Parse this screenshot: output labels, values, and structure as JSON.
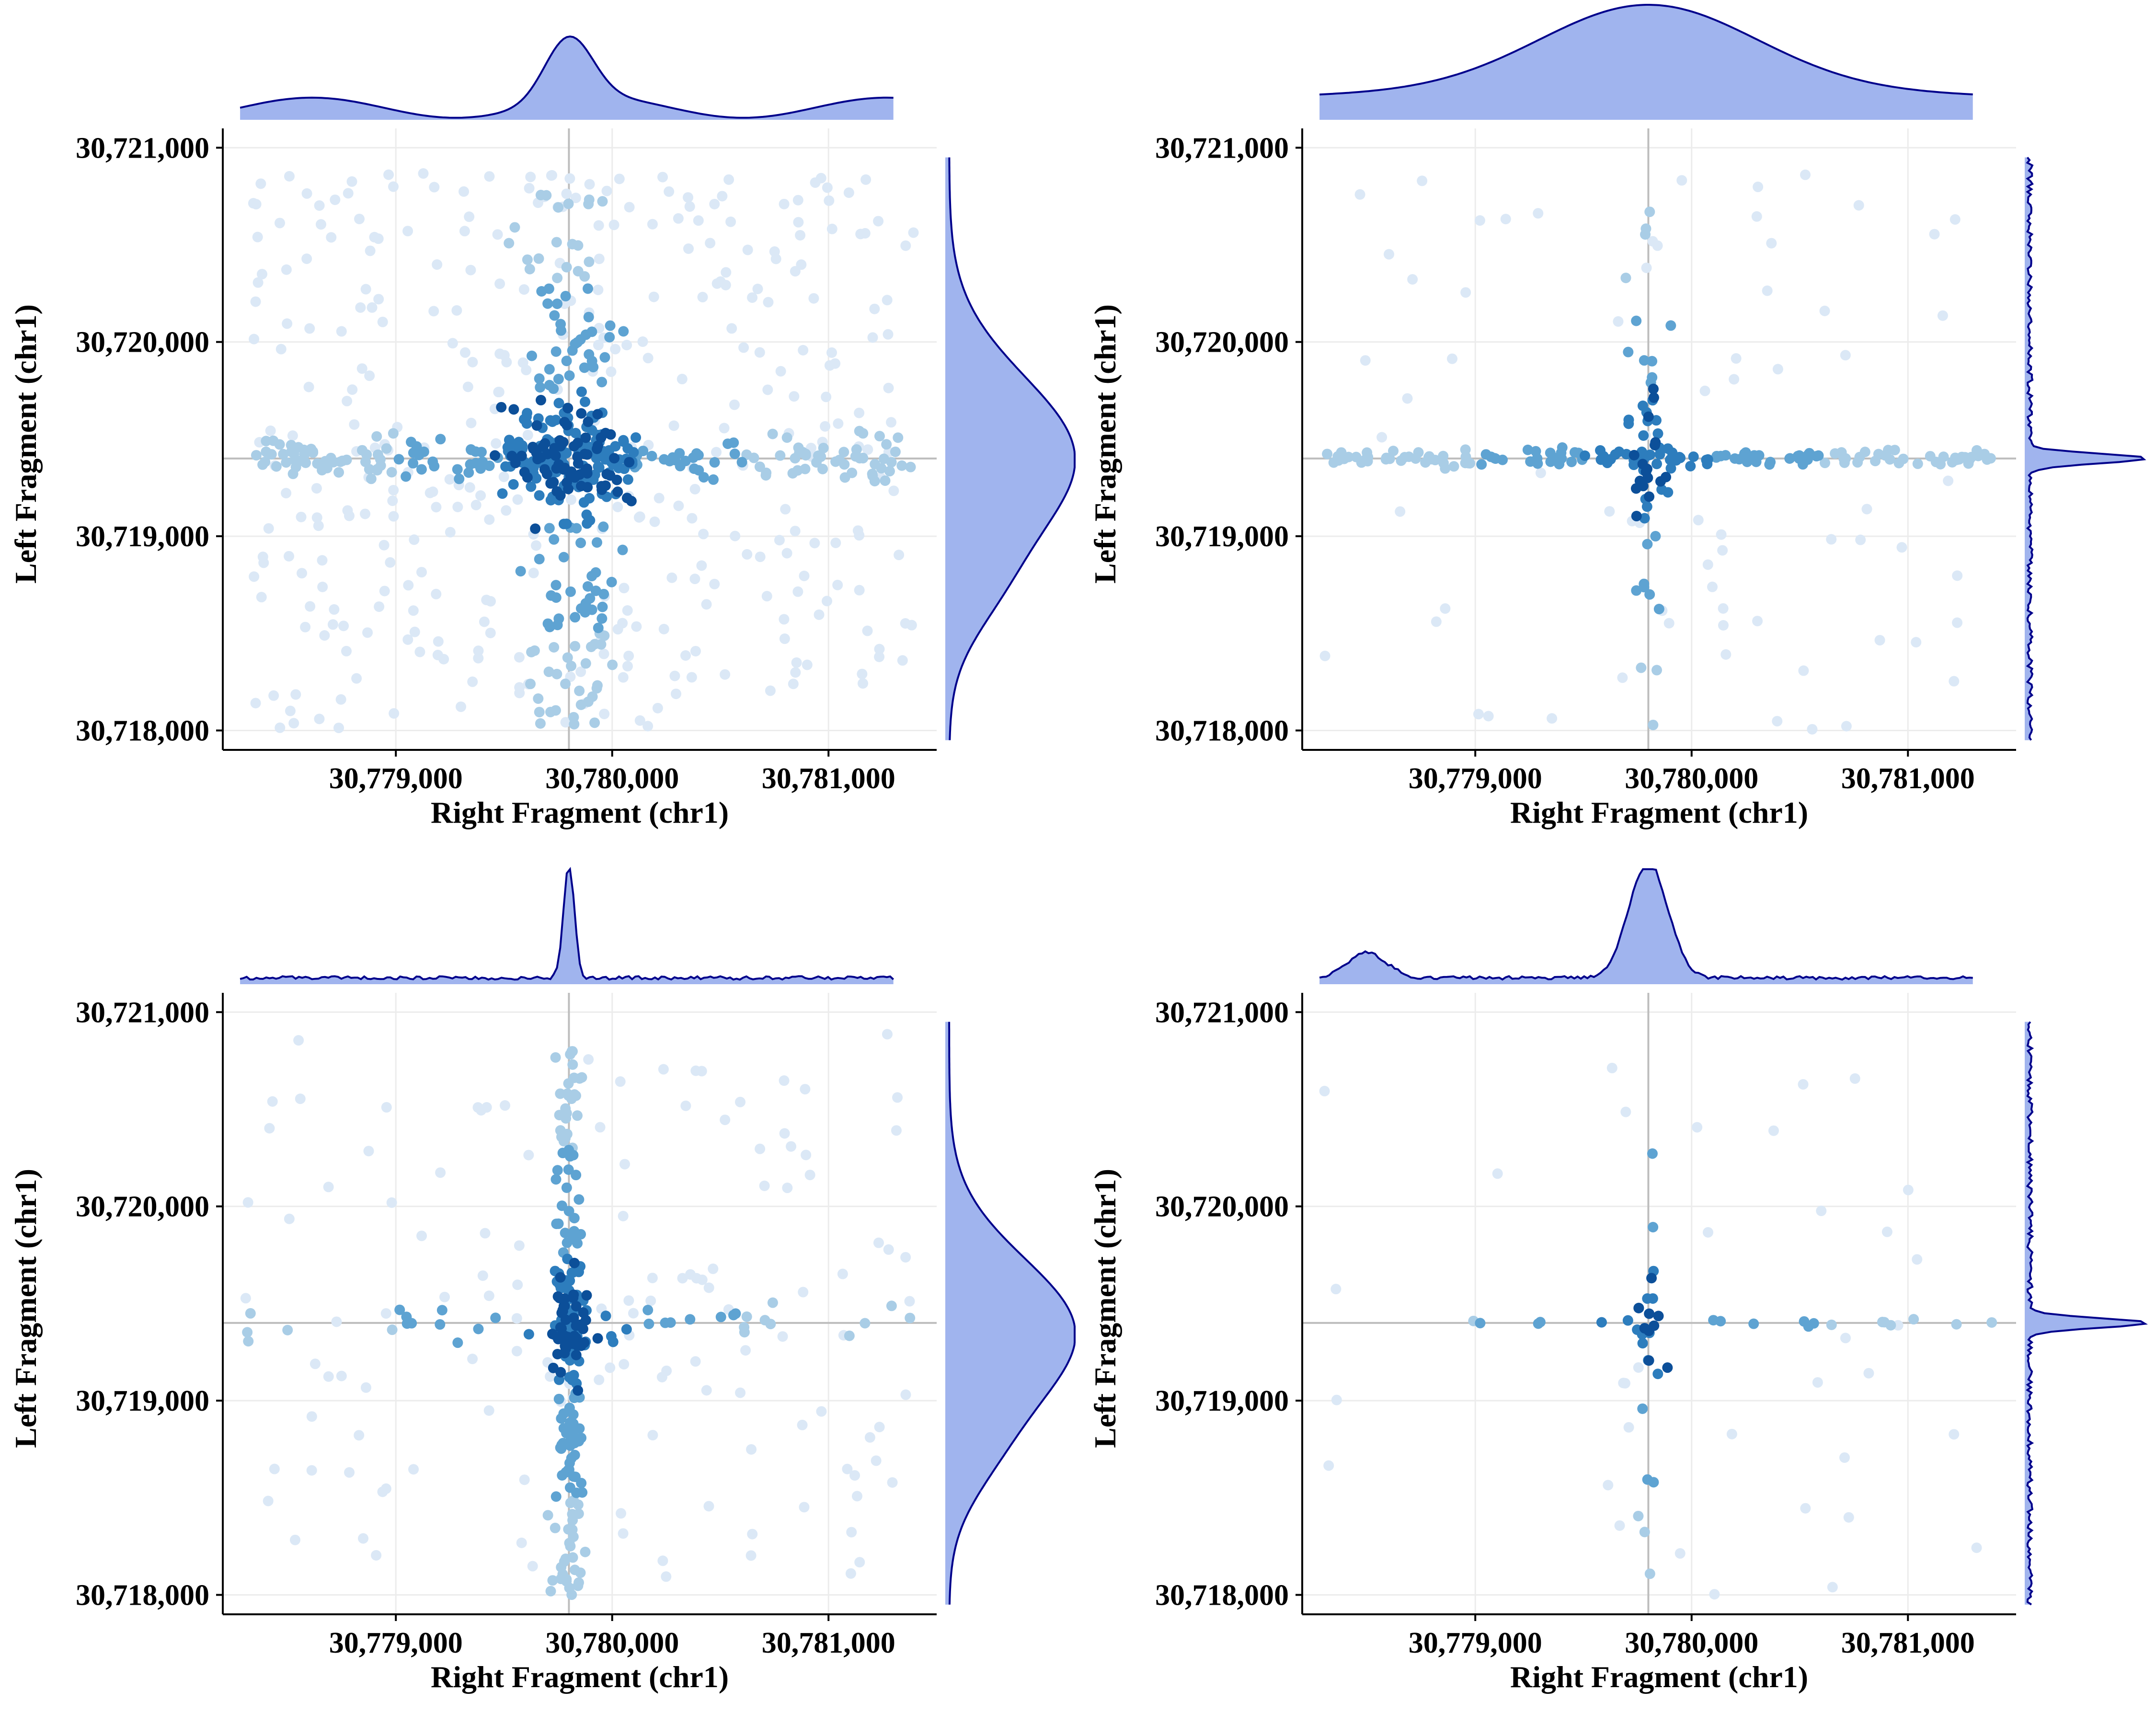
{
  "colors": {
    "density_fill": "#a0b4ee",
    "density_line": "#00008b",
    "grid": "#ececec",
    "crosshair": "#bdbdbd",
    "axis": "#000000",
    "point_scale": [
      "#dbe8f6",
      "#a9cde6",
      "#5ea3d2",
      "#2d7dbd",
      "#0c4f99"
    ]
  },
  "chart_data": [
    {
      "type": "scatter",
      "panel": "top-left",
      "xlabel": "Right Fragment (chr1)",
      "ylabel": "Left Fragment (chr1)",
      "xlim": [
        30778200,
        30781500
      ],
      "ylim": [
        30717900,
        30721050
      ],
      "xticks": [
        30779000,
        30780000,
        30781000
      ],
      "xtick_labels": [
        "30,779,000",
        "30,780,000",
        "30,781,000"
      ],
      "yticks": [
        30718000,
        30719000,
        30720000,
        30721000
      ],
      "ytick_labels": [
        "30,718,000",
        "30,719,000",
        "30,720,000",
        "30,721,000"
      ],
      "crosshair": {
        "x": 30779800,
        "y": 30719400
      },
      "marginal_x_density": {
        "peak_x": 30779800,
        "peak_sd": 110,
        "peak_weight": 0.55,
        "base_noise": 0.35
      },
      "marginal_y_density": {
        "peak_y": 30719400,
        "peak_sd": 420,
        "shape": "broad"
      },
      "point_pattern": {
        "n_background": 360,
        "n_row": 200,
        "n_col": 170,
        "n_core": 110,
        "row_spread_y": 60,
        "col_spread_x": 120
      }
    },
    {
      "type": "scatter",
      "panel": "top-right",
      "xlabel": "Right Fragment (chr1)",
      "ylabel": "Left Fragment (chr1)",
      "xlim": [
        30778200,
        30781500
      ],
      "ylim": [
        30717900,
        30721050
      ],
      "xticks": [
        30779000,
        30780000,
        30781000
      ],
      "xtick_labels": [
        "30,779,000",
        "30,780,000",
        "30,781,000"
      ],
      "yticks": [
        30718000,
        30719000,
        30720000,
        30721000
      ],
      "ytick_labels": [
        "30,718,000",
        "30,719,000",
        "30,720,000",
        "30,721,000"
      ],
      "crosshair": {
        "x": 30779800,
        "y": 30719400
      },
      "marginal_x_density": {
        "peak_x": 30779800,
        "peak_sd": 500,
        "shape": "broad"
      },
      "marginal_y_density": {
        "peak_y": 30719400,
        "peak_sd": 25,
        "shape": "sharp"
      },
      "point_pattern": {
        "n_background": 70,
        "n_row": 150,
        "n_col": 25,
        "n_core": 35,
        "row_spread_y": 20,
        "col_spread_x": 40
      }
    },
    {
      "type": "scatter",
      "panel": "bottom-left",
      "xlabel": "Right Fragment (chr1)",
      "ylabel": "Left Fragment (chr1)",
      "xlim": [
        30778200,
        30781500
      ],
      "ylim": [
        30717900,
        30721050
      ],
      "xticks": [
        30779000,
        30780000,
        30781000
      ],
      "xtick_labels": [
        "30,779,000",
        "30,780,000",
        "30,781,000"
      ],
      "yticks": [
        30718000,
        30719000,
        30720000,
        30721000
      ],
      "ytick_labels": [
        "30,718,000",
        "30,719,000",
        "30,720,000",
        "30,721,000"
      ],
      "crosshair": {
        "x": 30779800,
        "y": 30719400
      },
      "marginal_x_density": {
        "peak_x": 30779800,
        "peak_sd": 25,
        "shape": "sharp"
      },
      "marginal_y_density": {
        "peak_y": 30719350,
        "peak_sd": 380,
        "shape": "broad"
      },
      "point_pattern": {
        "n_background": 130,
        "n_row": 40,
        "n_col": 150,
        "n_core": 80,
        "row_spread_y": 40,
        "col_spread_x": 35
      }
    },
    {
      "type": "scatter",
      "panel": "bottom-right",
      "xlabel": "Right Fragment (chr1)",
      "ylabel": "Left Fragment (chr1)",
      "xlim": [
        30778200,
        30781500
      ],
      "ylim": [
        30717900,
        30721050
      ],
      "xticks": [
        30779000,
        30780000,
        30781000
      ],
      "xtick_labels": [
        "30,779,000",
        "30,780,000",
        "30,781,000"
      ],
      "yticks": [
        30718000,
        30719000,
        30720000,
        30721000
      ],
      "ytick_labels": [
        "30,718,000",
        "30,719,000",
        "30,720,000",
        "30,721,000"
      ],
      "crosshair": {
        "x": 30779800,
        "y": 30719400
      },
      "marginal_x_density": {
        "peak_x": 30779800,
        "peak_sd": 90,
        "secondary_peak_x": 30778500,
        "shape": "sharp"
      },
      "marginal_y_density": {
        "peak_y": 30719400,
        "peak_sd": 25,
        "shape": "sharp"
      },
      "point_pattern": {
        "n_background": 35,
        "n_row": 20,
        "n_col": 12,
        "n_core": 14,
        "row_spread_y": 15,
        "col_spread_x": 30
      }
    }
  ]
}
